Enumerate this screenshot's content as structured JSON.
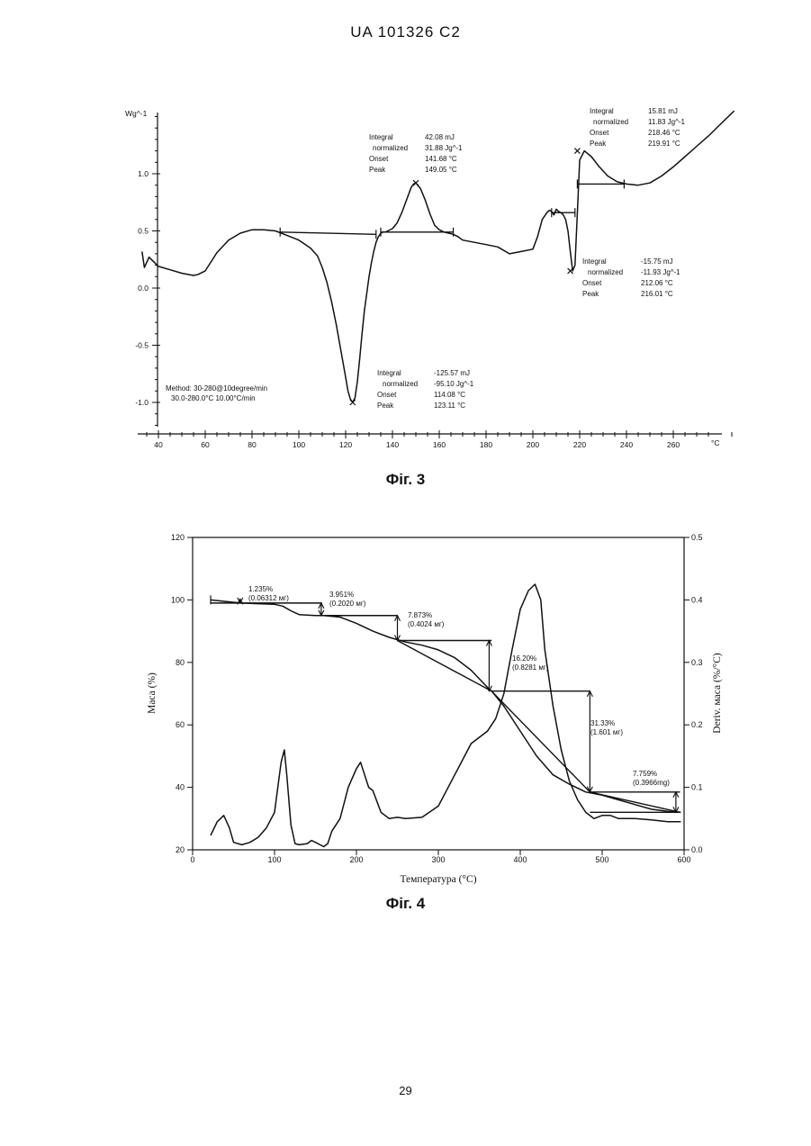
{
  "header": "UA   101326   C2",
  "page_number": "29",
  "chart_data": [
    {
      "id": "fig3",
      "type": "line",
      "caption": "Фіг. 3",
      "ylabel": "Wg^-1",
      "xunit": "°C",
      "xlim": [
        33,
        287
      ],
      "ylim": [
        -1.25,
        1.55
      ],
      "xticks": [
        40,
        60,
        80,
        100,
        120,
        140,
        160,
        180,
        200,
        220,
        240,
        260
      ],
      "xtick_labels": [
        "40",
        "60",
        "80",
        "100",
        "120",
        "140",
        "160",
        "180",
        "200",
        "220",
        "240",
        "260"
      ],
      "yticks": [
        1.0,
        0.5,
        0.0,
        -0.5,
        -1.0
      ],
      "ytick_labels": [
        "1.0",
        "0.5",
        "0.0",
        "-0.5",
        "-1.0"
      ],
      "series": [
        {
          "x": [
            33,
            34,
            36,
            38,
            40,
            45,
            50,
            55,
            57,
            60,
            65,
            70,
            75,
            80,
            85,
            90,
            95,
            100,
            105,
            108,
            110,
            112,
            114,
            116,
            118,
            120,
            121,
            122,
            123,
            124,
            125,
            126,
            127,
            128,
            129,
            130,
            131,
            132,
            133,
            134,
            135,
            136,
            137,
            138,
            140,
            142,
            144,
            146,
            148,
            149,
            150,
            152,
            154,
            156,
            158,
            160,
            162,
            164,
            166,
            168,
            170,
            175,
            180,
            185,
            190,
            195,
            200,
            202,
            204,
            206,
            207,
            208,
            209,
            210,
            211,
            212,
            213,
            214,
            215,
            216,
            217,
            218,
            219,
            220,
            222,
            225,
            228,
            232,
            236,
            240,
            245,
            250,
            255,
            260,
            265,
            270,
            275,
            280,
            286
          ],
          "y": [
            0.32,
            0.18,
            0.27,
            0.23,
            0.19,
            0.16,
            0.13,
            0.11,
            0.12,
            0.15,
            0.31,
            0.42,
            0.48,
            0.51,
            0.51,
            0.5,
            0.46,
            0.42,
            0.35,
            0.28,
            0.18,
            0.05,
            -0.12,
            -0.32,
            -0.55,
            -0.78,
            -0.9,
            -0.97,
            -1.0,
            -0.96,
            -0.82,
            -0.62,
            -0.4,
            -0.2,
            -0.05,
            0.1,
            0.22,
            0.32,
            0.4,
            0.45,
            0.48,
            0.49,
            0.49,
            0.5,
            0.52,
            0.57,
            0.66,
            0.77,
            0.88,
            0.91,
            0.92,
            0.87,
            0.77,
            0.65,
            0.55,
            0.51,
            0.49,
            0.48,
            0.47,
            0.45,
            0.42,
            0.4,
            0.38,
            0.36,
            0.3,
            0.32,
            0.34,
            0.45,
            0.6,
            0.66,
            0.68,
            0.67,
            0.64,
            0.69,
            0.67,
            0.66,
            0.64,
            0.6,
            0.5,
            0.32,
            0.15,
            0.2,
            0.65,
            1.12,
            1.2,
            1.15,
            1.07,
            0.98,
            0.93,
            0.91,
            0.9,
            0.92,
            0.98,
            1.06,
            1.15,
            1.24,
            1.33,
            1.43,
            1.55
          ]
        }
      ],
      "baselines": [
        {
          "x": [
            92,
            133
          ],
          "y": [
            0.49,
            0.47
          ]
        },
        {
          "x": [
            135,
            166
          ],
          "y": [
            0.49,
            0.49
          ]
        },
        {
          "x": [
            208,
            218
          ],
          "y": [
            0.66,
            0.66
          ]
        },
        {
          "x": [
            219,
            239
          ],
          "y": [
            0.91,
            0.91
          ]
        }
      ],
      "markers": [
        {
          "x": 123,
          "y": -1.0
        },
        {
          "x": 150,
          "y": 0.92
        },
        {
          "x": 216,
          "y": 0.15
        },
        {
          "x": 219,
          "y": 1.2
        }
      ],
      "annotations": [
        {
          "lines": [
            "Integral",
            "normalized",
            "Onset",
            "Peak"
          ],
          "values": [
            "42.08 mJ",
            "31.88 Jg^-1",
            "141.68 °C",
            "149.05 °C"
          ]
        },
        {
          "lines": [
            "Integral",
            "normalized",
            "Onset",
            "Peak"
          ],
          "values": [
            "15.81 mJ",
            "11.83 Jg^-1",
            "218.46 °C",
            "219.91 °C"
          ]
        },
        {
          "lines": [
            "Integral",
            "normalized",
            "Onset",
            "Peak"
          ],
          "values": [
            "-15.75 mJ",
            "-11.93 Jg^-1",
            "212.06 °C",
            "216.01 °C"
          ]
        },
        {
          "lines": [
            "Integral",
            "normalized",
            "Onset",
            "Peak"
          ],
          "values": [
            "-125.57 mJ",
            "-95.10 Jg^-1",
            "114.08 °C",
            "123.11 °C"
          ]
        }
      ],
      "method_lines": [
        "Method: 30-280@10degree/min",
        "30.0-280.0°C 10.00°C/min"
      ]
    },
    {
      "id": "fig4",
      "type": "line",
      "caption": "Фіг. 4",
      "xlabel": "Температура (°C)",
      "ylabel": "Маса (%)",
      "y2label": "Deriv.  маса (%/°C)",
      "xlim": [
        0,
        600
      ],
      "ylim": [
        20,
        120
      ],
      "y2lim": [
        0.0,
        0.5
      ],
      "xticks": [
        0,
        100,
        200,
        300,
        400,
        500,
        600
      ],
      "xtick_labels": [
        "0",
        "100",
        "200",
        "300",
        "400",
        "500",
        "600"
      ],
      "yticks": [
        20,
        40,
        60,
        80,
        100,
        120
      ],
      "ytick_labels": [
        "20",
        "40",
        "60",
        "80",
        "100",
        "120"
      ],
      "y2ticks": [
        0.0,
        0.1,
        0.2,
        0.3,
        0.4,
        0.5
      ],
      "y2tick_labels": [
        "0.0",
        "0.1",
        "0.2",
        "0.3",
        "0.4",
        "0.5"
      ],
      "series": [
        {
          "axis": "left",
          "x": [
            22,
            40,
            60,
            80,
            100,
            110,
            120,
            130,
            150,
            160,
            180,
            200,
            220,
            240,
            260,
            280,
            300,
            320,
            340,
            360,
            365,
            380,
            400,
            420,
            440,
            460,
            480,
            500,
            520,
            540,
            560,
            580,
            596
          ],
          "y": [
            100.0,
            99.5,
            99.0,
            98.8,
            98.6,
            98.0,
            96.5,
            95.3,
            95.0,
            95.0,
            94.5,
            92.5,
            90.0,
            88.0,
            86.5,
            85.5,
            84.0,
            81.5,
            77.5,
            72.0,
            70.8,
            66.0,
            58.0,
            50.0,
            44.0,
            41.0,
            38.5,
            37.5,
            36.0,
            34.5,
            33.0,
            32.3,
            32.0
          ]
        },
        {
          "axis": "right",
          "x": [
            22,
            30,
            38,
            45,
            50,
            60,
            70,
            80,
            90,
            100,
            108,
            112,
            115,
            120,
            125,
            130,
            140,
            145,
            150,
            160,
            165,
            170,
            180,
            190,
            200,
            205,
            210,
            215,
            220,
            230,
            240,
            250,
            260,
            280,
            300,
            320,
            340,
            360,
            370,
            380,
            390,
            400,
            410,
            418,
            425,
            430,
            440,
            450,
            460,
            470,
            480,
            490,
            500,
            510,
            520,
            540,
            560,
            580,
            596
          ],
          "y": [
            0.023,
            0.045,
            0.055,
            0.035,
            0.012,
            0.008,
            0.012,
            0.02,
            0.035,
            0.06,
            0.14,
            0.16,
            0.12,
            0.04,
            0.01,
            0.008,
            0.01,
            0.015,
            0.012,
            0.005,
            0.01,
            0.03,
            0.05,
            0.1,
            0.13,
            0.14,
            0.12,
            0.1,
            0.095,
            0.06,
            0.05,
            0.052,
            0.05,
            0.052,
            0.07,
            0.12,
            0.17,
            0.19,
            0.21,
            0.25,
            0.32,
            0.385,
            0.415,
            0.425,
            0.4,
            0.32,
            0.23,
            0.16,
            0.11,
            0.08,
            0.06,
            0.05,
            0.055,
            0.055,
            0.05,
            0.05,
            0.048,
            0.045,
            0.045
          ]
        }
      ],
      "steps": [
        {
          "label": "1.235%",
          "sub": "(0.06312 мг)",
          "x": [
            22,
            158
          ],
          "y": 99.0,
          "arrow_x": 58
        },
        {
          "label": "3.951%",
          "sub": "(0.2020 мг)",
          "x": [
            158,
            250
          ],
          "y": 95.0,
          "arrow_x": 157
        },
        {
          "label": "7.873%",
          "sub": "(0.4024 мг)",
          "x": [
            250,
            365
          ],
          "y": 87.0,
          "arrow_x": 250
        },
        {
          "label": "16.20%",
          "sub": "(0.8281 мг)",
          "x": [
            365,
            485
          ],
          "y": 70.8,
          "arrow_x": 362
        },
        {
          "label": "31.33%",
          "sub": "(1.601 мг)",
          "x": [
            485,
            595
          ],
          "y": 38.5,
          "arrow_x": 485
        },
        {
          "label": "7.759%",
          "sub": "(0.3966mg)",
          "x": [
            485,
            595
          ],
          "y": 32.0,
          "arrow_x": 590
        }
      ]
    }
  ]
}
